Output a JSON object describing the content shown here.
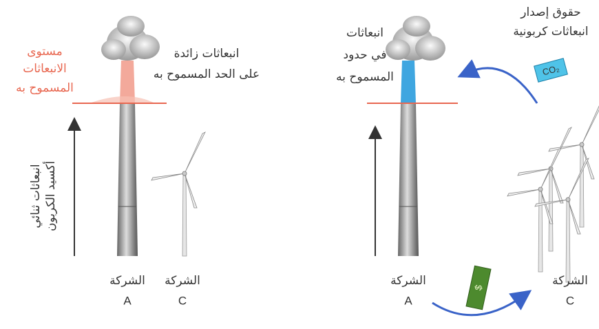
{
  "left_panel": {
    "allowed_level_label": [
      "مستوى",
      "الانبعاثات",
      "المسموح به"
    ],
    "excess_label": [
      "انبعاثات زائدة",
      "على الحد المسموح به"
    ],
    "axis_label": [
      "انبعاثات ثنائي",
      "أكسيد الكربون"
    ],
    "company_a": {
      "name": "الشركة",
      "letter": "A"
    },
    "company_c": {
      "name": "الشركة",
      "letter": "C"
    }
  },
  "right_panel": {
    "within_label": [
      "انبعاثات",
      "في حدود",
      "المسموح به"
    ],
    "rights_label": [
      "حقوق إصدار",
      "انبعاثات كربونية"
    ],
    "co2_box": "CO₂",
    "money": "$",
    "company_a": {
      "name": "الشركة",
      "letter": "A"
    },
    "company_c": {
      "name": "الشركة",
      "letter": "C"
    }
  }
}
